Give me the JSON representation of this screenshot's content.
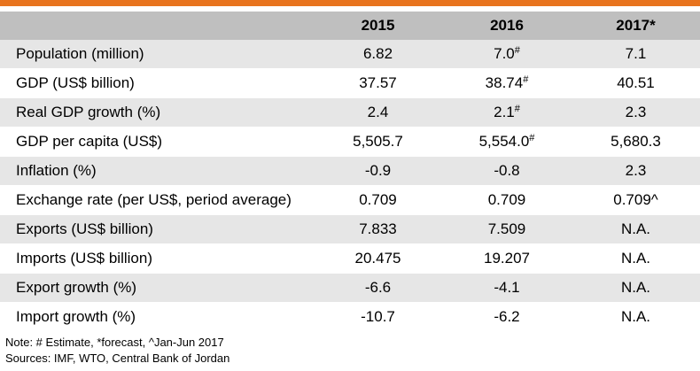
{
  "table": {
    "header": {
      "label": "",
      "years": [
        "2015",
        "2016",
        "2017*"
      ]
    },
    "rows": [
      {
        "label": "Population (million)",
        "values": [
          "6.82",
          "7.0",
          "7.1"
        ],
        "marks": [
          "",
          "#",
          ""
        ]
      },
      {
        "label": "GDP (US$ billion)",
        "values": [
          "37.57",
          "38.74",
          "40.51"
        ],
        "marks": [
          "",
          "#",
          ""
        ]
      },
      {
        "label": "Real GDP growth (%)",
        "values": [
          "2.4",
          "2.1",
          "2.3"
        ],
        "marks": [
          "",
          "#",
          ""
        ]
      },
      {
        "label": "GDP per capita (US$)",
        "values": [
          "5,505.7",
          "5,554.0",
          "5,680.3"
        ],
        "marks": [
          "",
          "#",
          ""
        ]
      },
      {
        "label": "Inflation (%)",
        "values": [
          "-0.9",
          "-0.8",
          "2.3"
        ],
        "marks": [
          "",
          "",
          ""
        ]
      },
      {
        "label": "Exchange rate (per US$, period average)",
        "values": [
          "0.709",
          "0.709",
          "0.709^"
        ],
        "marks": [
          "",
          "",
          ""
        ]
      },
      {
        "label": "Exports (US$ billion)",
        "values": [
          "7.833",
          "7.509",
          "N.A."
        ],
        "marks": [
          "",
          "",
          ""
        ]
      },
      {
        "label": "Imports (US$ billion)",
        "values": [
          "20.475",
          "19.207",
          "N.A."
        ],
        "marks": [
          "",
          "",
          ""
        ]
      },
      {
        "label": "Export growth (%)",
        "values": [
          "-6.6",
          "-4.1",
          "N.A."
        ],
        "marks": [
          "",
          "",
          ""
        ]
      },
      {
        "label": "Import growth (%)",
        "values": [
          "-10.7",
          "-6.2",
          "N.A."
        ],
        "marks": [
          "",
          "",
          ""
        ]
      }
    ]
  },
  "notes": {
    "note": "Note:  # Estimate, *forecast, ^Jan-Jun 2017",
    "sources": "Sources: IMF, WTO, Central Bank of Jordan"
  },
  "colors": {
    "accent_bar": "#e8741e",
    "header_bg": "#bfbfbf",
    "shaded_row_bg": "#e6e6e6"
  }
}
